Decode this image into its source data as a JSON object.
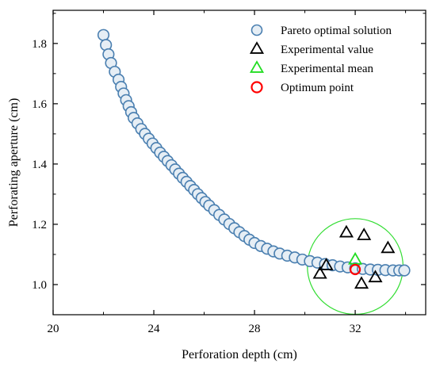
{
  "chart_data": {
    "type": "scatter",
    "xlabel": "Perforation depth (cm)",
    "ylabel": "Perforating aperture (cm)",
    "xlim": [
      20,
      34.8
    ],
    "ylim": [
      0.9,
      1.91
    ],
    "xticks": [
      20,
      24,
      28,
      32
    ],
    "yticks": [
      1.0,
      1.2,
      1.4,
      1.6,
      1.8
    ],
    "xtick_labels": [
      "20",
      "24",
      "28",
      "32"
    ],
    "ytick_labels": [
      "1.0",
      "1.2",
      "1.4",
      "1.6",
      "1.8"
    ],
    "legend_position": "top-right",
    "series": [
      {
        "name": "Pareto optimal solution",
        "marker": "circle",
        "color": "#4a7fb0",
        "fill": "#e6eef5",
        "x": [
          22.0,
          22.1,
          22.2,
          22.3,
          22.45,
          22.6,
          22.7,
          22.8,
          22.9,
          23.0,
          23.1,
          23.2,
          23.35,
          23.5,
          23.65,
          23.8,
          23.95,
          24.1,
          24.25,
          24.4,
          24.55,
          24.7,
          24.85,
          25.0,
          25.15,
          25.3,
          25.45,
          25.6,
          25.75,
          25.9,
          26.05,
          26.2,
          26.4,
          26.6,
          26.8,
          27.0,
          27.2,
          27.4,
          27.6,
          27.8,
          28.0,
          28.25,
          28.5,
          28.75,
          29.0,
          29.3,
          29.6,
          29.9,
          30.2,
          30.5,
          30.8,
          31.1,
          31.4,
          31.7,
          32.0,
          32.3,
          32.6,
          32.9,
          33.2,
          33.5,
          33.75,
          33.95
        ],
        "y": [
          1.828,
          1.795,
          1.764,
          1.735,
          1.706,
          1.68,
          1.656,
          1.634,
          1.612,
          1.592,
          1.572,
          1.553,
          1.535,
          1.516,
          1.5,
          1.484,
          1.468,
          1.453,
          1.438,
          1.424,
          1.41,
          1.396,
          1.382,
          1.368,
          1.354,
          1.341,
          1.327,
          1.314,
          1.3,
          1.287,
          1.274,
          1.262,
          1.247,
          1.231,
          1.216,
          1.201,
          1.187,
          1.174,
          1.161,
          1.149,
          1.138,
          1.128,
          1.119,
          1.11,
          1.103,
          1.096,
          1.09,
          1.083,
          1.078,
          1.073,
          1.068,
          1.064,
          1.06,
          1.057,
          1.054,
          1.052,
          1.05,
          1.049,
          1.048,
          1.047,
          1.047,
          1.047
        ]
      },
      {
        "name": "Experimental value",
        "marker": "triangle",
        "color": "#000000",
        "x": [
          30.6,
          30.85,
          31.65,
          32.35,
          32.8,
          33.3,
          32.25
        ],
        "y": [
          1.035,
          1.063,
          1.172,
          1.163,
          1.023,
          1.12,
          1.002
        ]
      },
      {
        "name": "Experimental mean",
        "marker": "triangle",
        "color": "#22dd22",
        "x": [
          32.0
        ],
        "y": [
          1.082
        ]
      },
      {
        "name": "Optimum point",
        "marker": "circle",
        "color": "#ff0000",
        "x": [
          32.0
        ],
        "y": [
          1.05
        ]
      }
    ],
    "annotations": [
      {
        "shape": "circle",
        "color": "#33dd33",
        "center": [
          32.0,
          1.06
        ],
        "radius_x_units": 1.9
      }
    ]
  }
}
